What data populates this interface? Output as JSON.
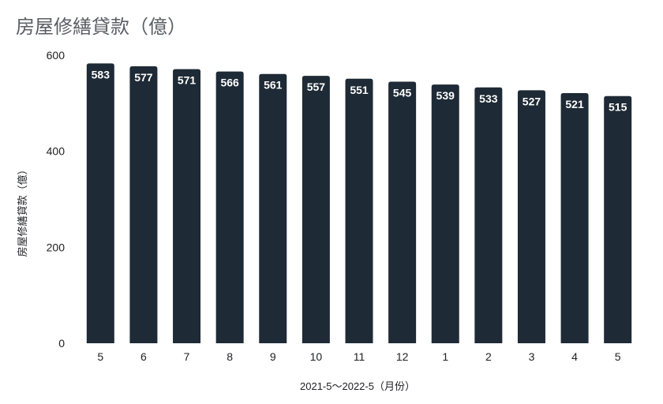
{
  "chart_data": {
    "type": "bar",
    "title": "房屋修繕貸款（億）",
    "xlabel": "2021-5～2022-5（月份）",
    "ylabel": "房屋修繕貸款（億）",
    "categories": [
      "5",
      "6",
      "7",
      "8",
      "9",
      "10",
      "11",
      "12",
      "1",
      "2",
      "3",
      "4",
      "5"
    ],
    "values": [
      583,
      577,
      571,
      566,
      561,
      557,
      551,
      545,
      539,
      533,
      527,
      521,
      515
    ],
    "ylim": [
      0,
      600
    ],
    "yticks": [
      0,
      200,
      400,
      600
    ],
    "grid": false,
    "data_labels": true,
    "colors": {
      "bar": "#1e2a35",
      "data_label": "#ffffff"
    }
  }
}
